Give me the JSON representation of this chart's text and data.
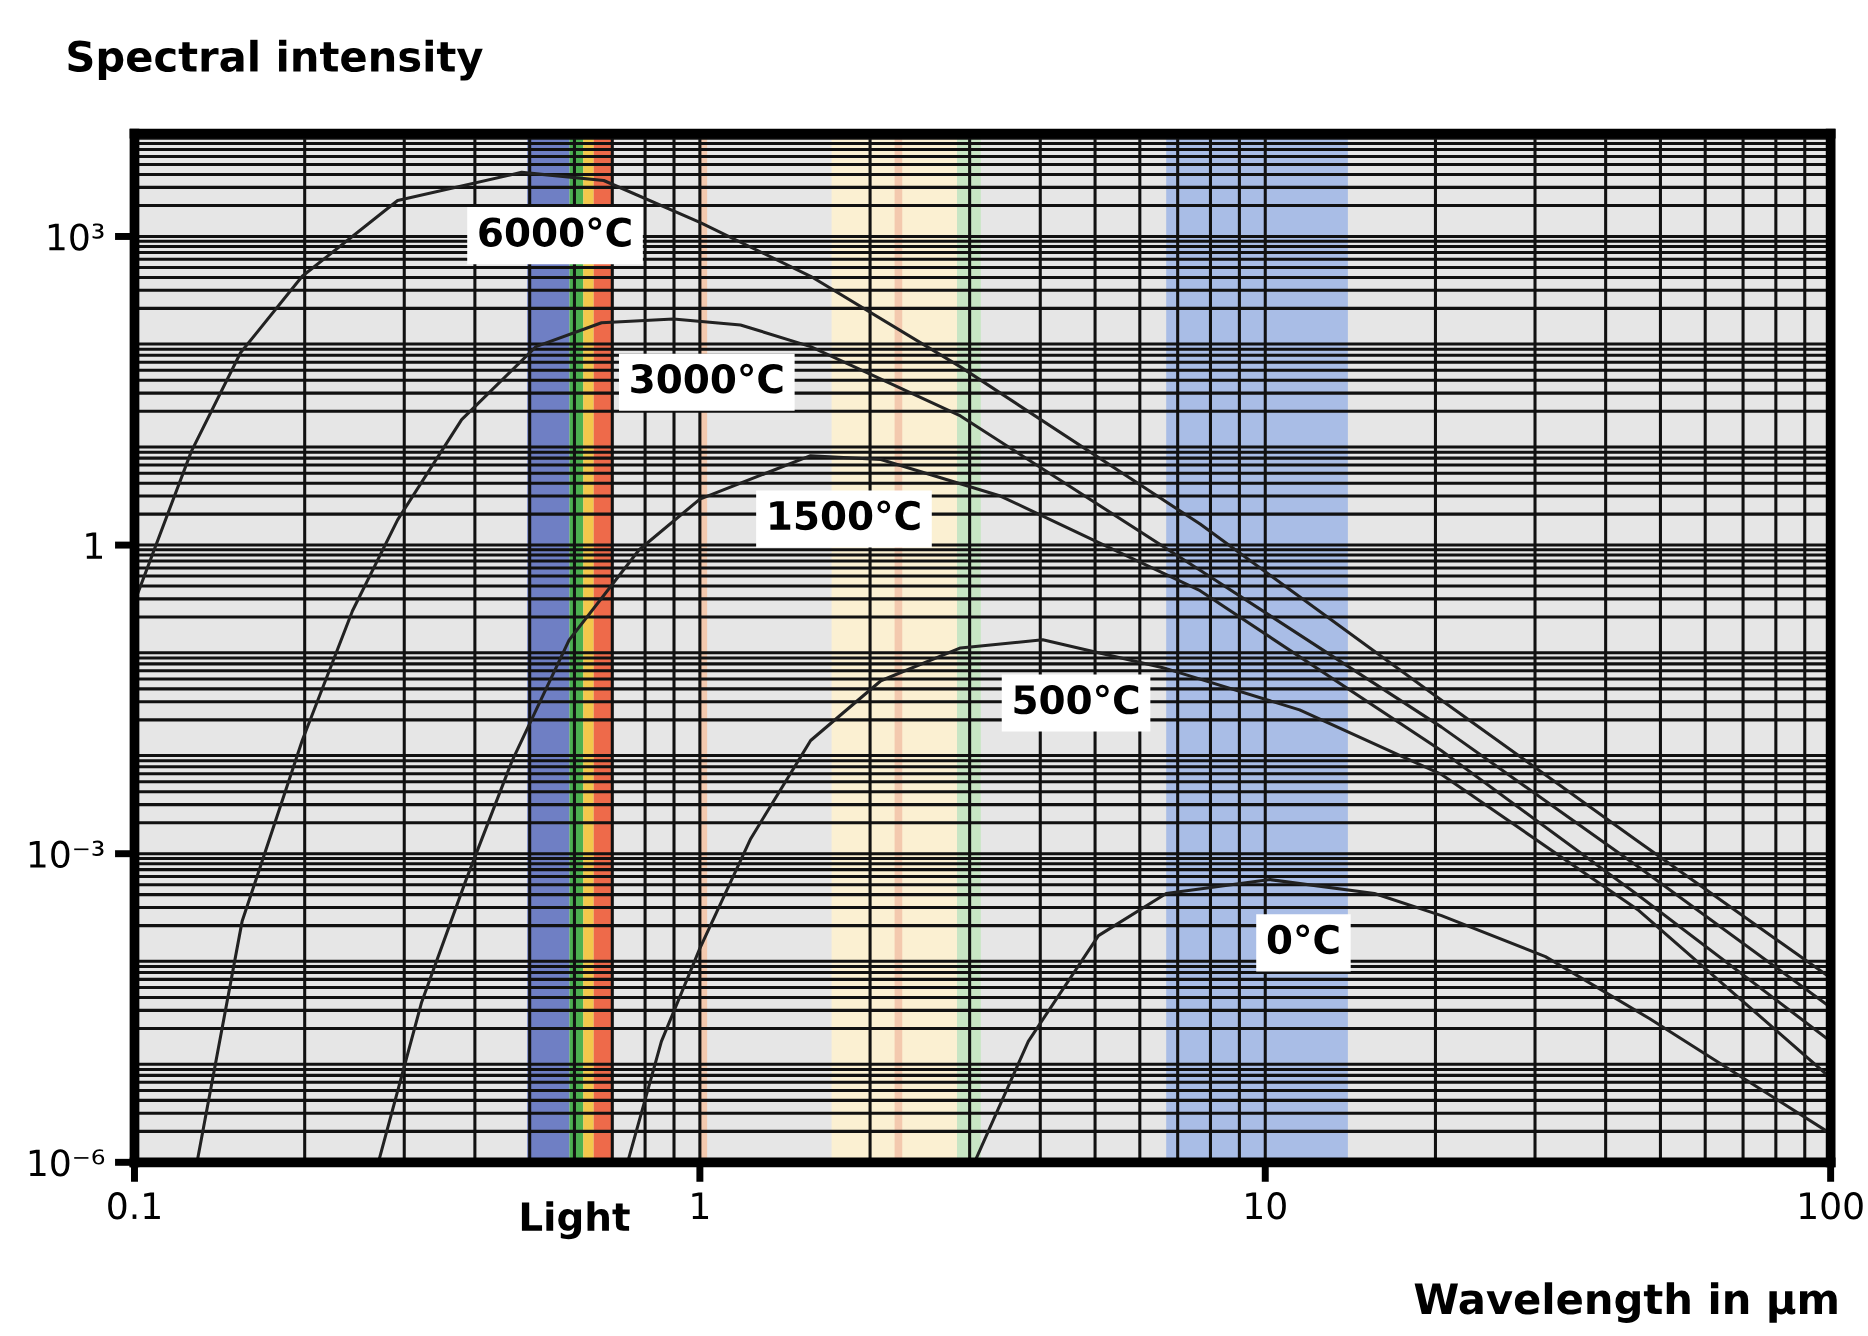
{
  "chart_data": {
    "type": "line",
    "title": "Spectral intensity",
    "xlabel": "Wavelength in µm",
    "log": "xy",
    "xlim": [
      0.1,
      100
    ],
    "ylim": [
      1e-06,
      10000
    ],
    "xticks": [
      0.1,
      1,
      10,
      100
    ],
    "yticks": [
      {
        "value": 1e-06,
        "label": "10⁻⁶"
      },
      {
        "value": 0.001,
        "label": "10⁻³"
      },
      1,
      {
        "value": 1000,
        "label": "10³"
      }
    ],
    "grid": true,
    "legend": false,
    "marker": "none",
    "line_style": "solid",
    "series": [
      {
        "name": "6000°C",
        "color": "#222222",
        "x": [
          0.1,
          0.126,
          0.154,
          0.198,
          0.292,
          0.484,
          0.676,
          1.0,
          1.57,
          2.89,
          7.67,
          20.5,
          45.8,
          100
        ],
        "values": [
          0.28,
          8.1,
          74,
          410,
          2240,
          4200,
          3500,
          1370,
          410,
          54,
          1.6,
          0.031,
          0.0013,
          6.2e-05
        ]
      },
      {
        "name": "3000°C",
        "color": "#222222",
        "x": [
          0.129,
          0.155,
          0.198,
          0.243,
          0.292,
          0.379,
          0.513,
          0.67,
          0.898,
          1.18,
          1.57,
          2.89,
          7.67,
          20.5,
          45.8,
          100
        ],
        "values": [
          1e-06,
          0.00022,
          0.0126,
          0.23,
          1.76,
          16.6,
          85,
          145,
          158,
          138,
          85,
          18,
          0.57,
          0.017,
          0.00074,
          3.2e-05
        ]
      },
      {
        "name": "1500°C",
        "color": "#222222",
        "x": [
          0.27,
          0.322,
          0.386,
          0.465,
          0.587,
          0.781,
          1.0,
          1.57,
          2.09,
          3.4,
          7.67,
          20.5,
          45.8,
          100
        ],
        "values": [
          1e-06,
          3.6e-05,
          0.00056,
          0.0079,
          0.119,
          0.9,
          2.8,
          7.4,
          6.8,
          3.0,
          0.36,
          0.01,
          0.00039,
          1.5e-05
        ]
      },
      {
        "name": "500°C",
        "color": "#222222",
        "x": [
          0.745,
          0.855,
          1.0,
          1.23,
          1.57,
          2.09,
          2.89,
          4.04,
          6.68,
          11.5,
          20.5,
          45.8,
          100
        ],
        "values": [
          1e-06,
          1.5e-05,
          0.00012,
          0.0014,
          0.0126,
          0.048,
          0.1,
          0.12,
          0.063,
          0.025,
          0.0059,
          0.00028,
          6.6e-06
        ]
      },
      {
        "name": "0°C",
        "color": "#222222",
        "x": [
          3.06,
          3.81,
          5.07,
          6.68,
          10.2,
          15.6,
          20.5,
          31.3,
          47.8,
          100
        ],
        "values": [
          1e-06,
          1.5e-05,
          0.00016,
          0.00041,
          0.00056,
          0.00041,
          0.00025,
          0.0001,
          2.5e-05,
          1.9e-06
        ]
      }
    ],
    "bands": [
      {
        "axis": "x",
        "from": 0.495,
        "to": 0.588,
        "color": "#6f7fc4"
      },
      {
        "axis": "x",
        "from": 0.588,
        "to": 0.622,
        "color": "#4caf50"
      },
      {
        "axis": "x",
        "from": 0.622,
        "to": 0.649,
        "color": "#f2c84b"
      },
      {
        "axis": "x",
        "from": 0.649,
        "to": 0.7,
        "color": "#ee6a4a"
      },
      {
        "axis": "x",
        "from": 1.0,
        "to": 1.03,
        "color": "#f3c9ae"
      },
      {
        "axis": "x",
        "from": 1.71,
        "to": 2.85,
        "color": "#fbf0d2"
      },
      {
        "axis": "x",
        "from": 2.21,
        "to": 2.28,
        "color": "#f3c9ae"
      },
      {
        "axis": "x",
        "from": 2.85,
        "to": 3.14,
        "color": "#c8e6c4"
      },
      {
        "axis": "x",
        "from": 6.68,
        "to": 14.0,
        "color": "#a9bde6"
      }
    ],
    "annotations": [
      {
        "text": "Light",
        "x": 0.6
      }
    ]
  }
}
